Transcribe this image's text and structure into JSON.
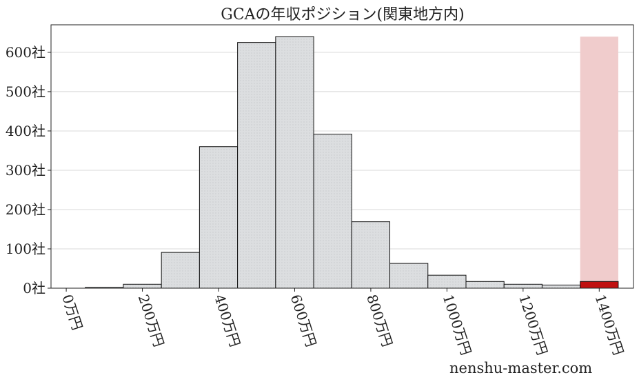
{
  "chart_data": {
    "type": "bar",
    "title": "GCAの年収ポジション(関東地方内)",
    "xlabel": "",
    "ylabel": "",
    "x_unit": "万円",
    "y_unit": "社",
    "bin_width": 100,
    "bins": [
      100,
      200,
      300,
      400,
      500,
      600,
      700,
      800,
      900,
      1000,
      1100,
      1200,
      1300
    ],
    "values": [
      2,
      10,
      91,
      360,
      625,
      640,
      392,
      169,
      63,
      33,
      17,
      10,
      8
    ],
    "highlight": {
      "bin": 1400,
      "band_top": 640,
      "value": 17
    },
    "xlim": [
      -40,
      1490
    ],
    "ylim": [
      0,
      670
    ],
    "x_ticks": [
      {
        "value": 0,
        "label": "0万円"
      },
      {
        "value": 200,
        "label": "200万円"
      },
      {
        "value": 400,
        "label": "400万円"
      },
      {
        "value": 600,
        "label": "600万円"
      },
      {
        "value": 800,
        "label": "800万円"
      },
      {
        "value": 1000,
        "label": "1000万円"
      },
      {
        "value": 1200,
        "label": "1200万円"
      },
      {
        "value": 1400,
        "label": "1400万円"
      }
    ],
    "y_ticks": [
      {
        "value": 0,
        "label": "0社"
      },
      {
        "value": 100,
        "label": "100社"
      },
      {
        "value": 200,
        "label": "200社"
      },
      {
        "value": 300,
        "label": "300社"
      },
      {
        "value": 400,
        "label": "400社"
      },
      {
        "value": 500,
        "label": "500社"
      },
      {
        "value": 600,
        "label": "600社"
      }
    ],
    "grid": true,
    "colors": {
      "bar_fill": "#dcdee0",
      "bar_edge": "#111111",
      "highlight_band": "#f0cccc",
      "highlight_bar": "#c01010",
      "grid": "#d8d8d8"
    }
  },
  "watermark": "nenshu-master.com"
}
